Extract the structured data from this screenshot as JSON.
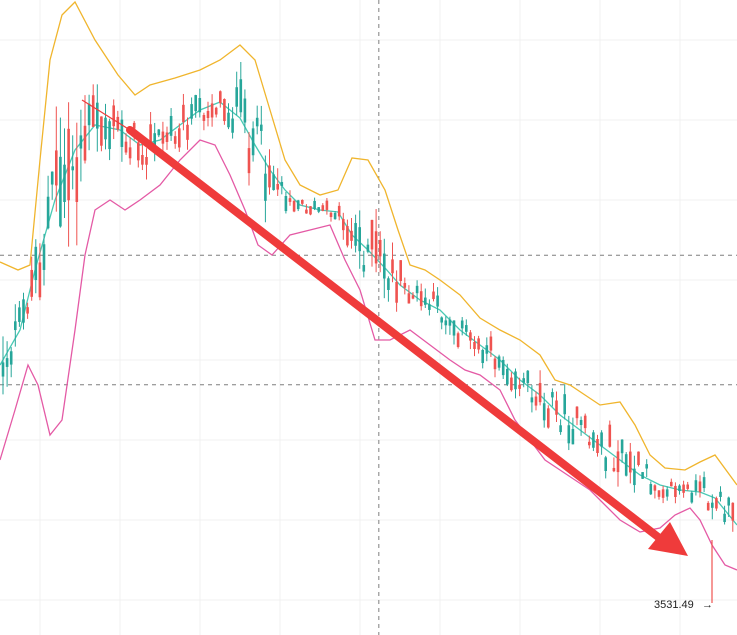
{
  "chart_data": {
    "type": "candlestick",
    "overlay": "bollinger-bands",
    "price_marker": {
      "value": 3531.49,
      "label": "3531.49",
      "arrow": "→"
    },
    "colors": {
      "up": "#26a69a",
      "down": "#ef5350",
      "upper_band": "#f0b52d",
      "middle_band": "#49c9b4",
      "lower_band": "#e45aa5",
      "trend_arrow": "#ef3b3b",
      "crosshair": "#7f7f7f",
      "grid": "#f0f0f0"
    },
    "grid": true,
    "crosshair": {
      "x_fraction": 0.514,
      "y_fractions": [
        0.402,
        0.606
      ]
    }
  }
}
